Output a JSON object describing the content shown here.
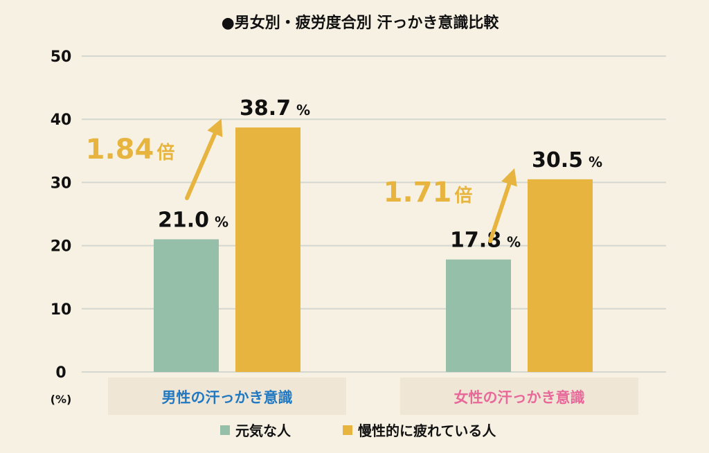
{
  "chart_data": {
    "type": "bar",
    "title": "●男女別・疲労度合別 汗っかき意識比較",
    "ylabel": "(%)",
    "ylim": [
      0,
      50
    ],
    "yticks": [
      0,
      10,
      20,
      30,
      40,
      50
    ],
    "grid": true,
    "legend_position": "bottom",
    "categories": [
      "男性の汗っかき意識",
      "女性の汗っかき意識"
    ],
    "category_colors": [
      "#1F78C1",
      "#E8689A"
    ],
    "value_suffix": "%",
    "series": [
      {
        "name": "元気な人",
        "color": "#96BFAA",
        "values": [
          21.0,
          17.8
        ],
        "labels": [
          "21.0",
          "17.8"
        ]
      },
      {
        "name": "慢性的に疲れている人",
        "color": "#E7B53F",
        "values": [
          38.7,
          30.5
        ],
        "labels": [
          "38.7",
          "30.5"
        ]
      }
    ],
    "annotations": [
      {
        "category": "男性の汗っかき意識",
        "value": "1.84",
        "suffix": "倍"
      },
      {
        "category": "女性の汗っかき意識",
        "value": "1.71",
        "suffix": "倍"
      }
    ]
  }
}
